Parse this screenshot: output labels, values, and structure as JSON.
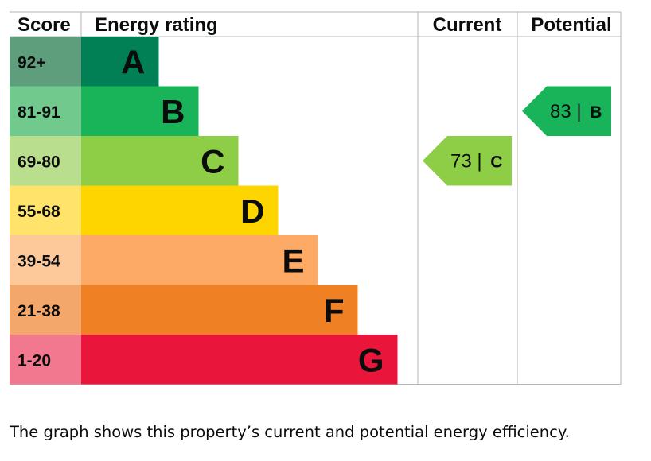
{
  "headers": {
    "score": "Score",
    "rating": "Energy rating",
    "current": "Current",
    "potential": "Potential"
  },
  "chart_data": {
    "type": "bar",
    "title": "",
    "categories": [
      "A",
      "B",
      "C",
      "D",
      "E",
      "F",
      "G"
    ],
    "score_ranges": [
      "92+",
      "81-91",
      "69-80",
      "55-68",
      "39-54",
      "21-38",
      "1-20"
    ],
    "band_colors": [
      "#008054",
      "#19b459",
      "#8dce46",
      "#ffd500",
      "#fcaa65",
      "#ef8023",
      "#e9153b"
    ],
    "score_colors": [
      "#5f9e7c",
      "#71c98d",
      "#b9de8e",
      "#ffe36b",
      "#fdc99a",
      "#f4a76b",
      "#f27890"
    ],
    "current": {
      "value": 73,
      "separator": "|",
      "rating": "C",
      "color": "#8dce46"
    },
    "potential": {
      "value": 83,
      "separator": "|",
      "rating": "B",
      "color": "#19b459"
    }
  },
  "caption": "The graph shows this property’s current and potential energy efficiency."
}
